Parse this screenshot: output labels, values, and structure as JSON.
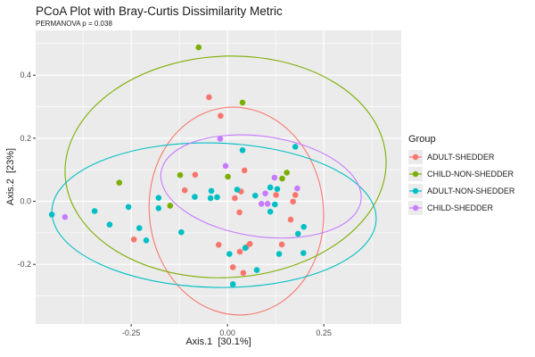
{
  "title": "PCoA Plot with Bray-Curtis Dissimilarity Metric",
  "subtitle": "PERMANOVA p = 0.038",
  "permanova_p": 0.038,
  "chart_data": {
    "type": "scatter",
    "title": "PCoA Plot with Bray-Curtis Dissimilarity Metric",
    "subtitle": "PERMANOVA p = 0.038",
    "xlabel": "Axis.1  [30.1%]",
    "ylabel": "Axis.2  [23%]",
    "xlim": [
      -0.498,
      0.451
    ],
    "ylim": [
      -0.389,
      0.542
    ],
    "x_ticks": [
      -0.25,
      0,
      0.25
    ],
    "x_tick_labels": [
      "-0.25",
      "0.00",
      "0.25"
    ],
    "y_ticks": [
      0.4,
      0.2,
      0,
      -0.2
    ],
    "y_tick_labels": [
      "0.4",
      "0.2",
      "0.0",
      "-0.2"
    ],
    "x_minor_ticks": [
      -0.375,
      -0.125,
      0.125,
      0.375
    ],
    "y_minor_ticks": [
      0.5,
      0.3,
      0.1,
      -0.1,
      -0.3
    ],
    "grid": true,
    "panel_color": "#EBEBEB",
    "grid_color": "#FFFFFF",
    "tick_label_color": "#4d4d4d",
    "legend_title": "Group",
    "legend_position": "right",
    "series": [
      {
        "name": "ADULT-SHEDDER",
        "color": "#F8766D",
        "points": [
          [
            -0.048,
            0.33
          ],
          [
            -0.018,
            0.271
          ],
          [
            -0.084,
            0.084
          ],
          [
            0.044,
            0.098
          ],
          [
            -0.111,
            0.035
          ],
          [
            0.035,
            0.031
          ],
          [
            0.019,
            0.01
          ],
          [
            0.126,
            0.02
          ],
          [
            0.031,
            -0.035
          ],
          [
            0.176,
            0.02
          ],
          [
            0.17,
            -0.001
          ],
          [
            0.164,
            -0.058
          ],
          [
            -0.243,
            -0.121
          ],
          [
            -0.023,
            -0.138
          ],
          [
            0.032,
            -0.16
          ],
          [
            0.049,
            -0.145
          ],
          [
            0.058,
            -0.135
          ],
          [
            0.141,
            -0.137
          ],
          [
            0.014,
            -0.209
          ],
          [
            0.041,
            -0.227
          ]
        ],
        "ellipse": {
          "cx": 0.023,
          "cy": -0.031,
          "rx": 0.226,
          "ry": 0.33,
          "angle": -6
        }
      },
      {
        "name": "CHILD-NON-SHEDDER",
        "color": "#7CAE00",
        "points": [
          [
            -0.075,
            0.488
          ],
          [
            0.039,
            0.313
          ],
          [
            -0.123,
            0.083
          ],
          [
            0.001,
            0.078
          ],
          [
            0.142,
            0.072
          ],
          [
            0.154,
            0.091
          ],
          [
            -0.281,
            0.059
          ],
          [
            -0.149,
            -0.014
          ]
        ],
        "ellipse": {
          "cx": -0.005,
          "cy": 0.109,
          "rx": 0.417,
          "ry": 0.351,
          "angle": -3
        }
      },
      {
        "name": "ADULT-NON-SHEDDER",
        "color": "#00BFC4",
        "points": [
          [
            0.176,
            0.173
          ],
          [
            0.039,
            0.162
          ],
          [
            -0.456,
            -0.042
          ],
          [
            -0.345,
            -0.031
          ],
          [
            -0.257,
            -0.018
          ],
          [
            -0.306,
            -0.074
          ],
          [
            -0.229,
            -0.085
          ],
          [
            -0.211,
            -0.124
          ],
          [
            -0.179,
            0.011
          ],
          [
            -0.179,
            -0.022
          ],
          [
            -0.12,
            -0.098
          ],
          [
            -0.085,
            0.014
          ],
          [
            -0.042,
            0.033
          ],
          [
            -0.044,
            0.01
          ],
          [
            -0.027,
            0.013
          ],
          [
            0.025,
            0.037
          ],
          [
            0.072,
            0.018
          ],
          [
            0.111,
            0.044
          ],
          [
            0.129,
            0.039
          ],
          [
            0.123,
            -0.01
          ],
          [
            0.111,
            -0.033
          ],
          [
            0.005,
            -0.167
          ],
          [
            0.046,
            -0.148
          ],
          [
            0.076,
            -0.218
          ],
          [
            0.014,
            -0.263
          ],
          [
            0.134,
            -0.167
          ],
          [
            0.197,
            -0.164
          ],
          [
            0.198,
            -0.081
          ],
          [
            0.183,
            -0.103
          ]
        ],
        "ellipse": {
          "cx": -0.035,
          "cy": -0.044,
          "rx": 0.421,
          "ry": 0.229,
          "angle": 1.5
        }
      },
      {
        "name": "CHILD-SHEDDER",
        "color": "#C77CFF",
        "points": [
          [
            -0.019,
            0.198
          ],
          [
            -0.005,
            0.112
          ],
          [
            0.122,
            0.075
          ],
          [
            0.098,
            0.025
          ],
          [
            0.088,
            -0.008
          ],
          [
            0.104,
            -0.008
          ],
          [
            0.181,
            0.041
          ],
          [
            -0.422,
            -0.05
          ]
        ],
        "ellipse": {
          "cx": 0.087,
          "cy": 0.047,
          "rx": 0.262,
          "ry": 0.159,
          "angle": 8
        }
      }
    ]
  }
}
